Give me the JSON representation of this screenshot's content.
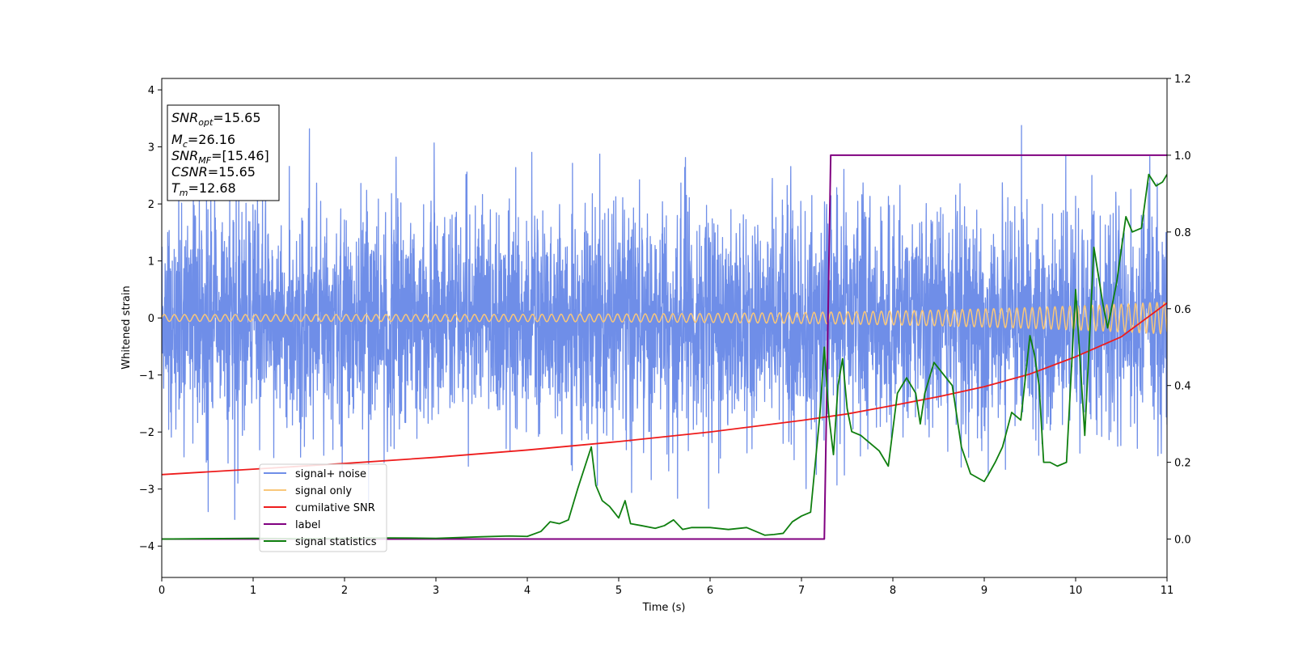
{
  "chart_data": {
    "type": "line",
    "xlabel": "Time (s)",
    "ylabel": "Whitened strain",
    "xlim": [
      0,
      11
    ],
    "ylim": [
      -4.55,
      4.2
    ],
    "y2lim": [
      -0.1,
      1.2
    ],
    "x_ticks": [
      "0",
      "1",
      "2",
      "3",
      "4",
      "5",
      "6",
      "7",
      "8",
      "9",
      "10",
      "11"
    ],
    "y_ticks": [
      "4",
      "3",
      "2",
      "1",
      "0",
      "−1",
      "−2",
      "−3",
      "−4"
    ],
    "y2_ticks": [
      "1.2",
      "1.0",
      "0.8",
      "0.6",
      "0.4",
      "0.2",
      "0.0"
    ],
    "grid": false,
    "legend_position": "lower-left",
    "info_box": {
      "snr_opt": {
        "base": "SNR",
        "sub": "opt",
        "value": "=15.65"
      },
      "mc": {
        "base": "M",
        "sub": "c",
        "value": "=26.16"
      },
      "snr_mf": {
        "base": "SNR",
        "sub": "MF",
        "value": "=[15.46]"
      },
      "csnr": {
        "base": "CSNR",
        "sub": "",
        "value": "=15.65"
      },
      "tm": {
        "base": "T",
        "sub": "m",
        "value": "=12.68"
      }
    },
    "series": [
      {
        "name": "signal+ noise",
        "color": "#6f8ee8",
        "axis": "left",
        "description": "whitened noise, std approx 1, range approx -4.2 to 3.8"
      },
      {
        "name": "signal only",
        "color": "#f9c77a",
        "axis": "left",
        "chirp_amplitude_start": 0.06,
        "chirp_amplitude_end": 0.28
      },
      {
        "name": "cumilative SNR",
        "color": "#ee1c1c",
        "axis": "right",
        "x": [
          0,
          1,
          2,
          3,
          4,
          5,
          6,
          7,
          7.5,
          8,
          8.5,
          9,
          9.5,
          10,
          10.5,
          11
        ],
        "y": [
          0.168,
          0.182,
          0.197,
          0.213,
          0.232,
          0.254,
          0.279,
          0.309,
          0.326,
          0.348,
          0.371,
          0.397,
          0.43,
          0.475,
          0.527,
          0.615
        ]
      },
      {
        "name": "label",
        "color": "#800080",
        "axis": "right",
        "x": [
          0,
          7.25,
          7.32,
          11
        ],
        "y": [
          0.0,
          0.0,
          1.0,
          1.0
        ]
      },
      {
        "name": "signal statistics",
        "color": "#0f7f0f",
        "axis": "right",
        "x": [
          0,
          0.5,
          1,
          1.5,
          2,
          2.5,
          3,
          3.5,
          3.8,
          4.0,
          4.15,
          4.25,
          4.35,
          4.45,
          4.55,
          4.7,
          4.75,
          4.82,
          4.9,
          5.0,
          5.07,
          5.13,
          5.25,
          5.4,
          5.5,
          5.6,
          5.7,
          5.8,
          6.0,
          6.2,
          6.4,
          6.6,
          6.7,
          6.8,
          6.9,
          7.0,
          7.1,
          7.2,
          7.25,
          7.3,
          7.35,
          7.4,
          7.45,
          7.5,
          7.55,
          7.65,
          7.75,
          7.85,
          7.95,
          8.05,
          8.15,
          8.25,
          8.3,
          8.35,
          8.45,
          8.55,
          8.65,
          8.75,
          8.85,
          9.0,
          9.05,
          9.12,
          9.2,
          9.3,
          9.4,
          9.5,
          9.55,
          9.6,
          9.65,
          9.72,
          9.8,
          9.9,
          10.0,
          10.1,
          10.2,
          10.3,
          10.35,
          10.45,
          10.55,
          10.62,
          10.72,
          10.8,
          10.88,
          10.95,
          11.0
        ],
        "y": [
          0.0,
          0.001,
          0.002,
          0.001,
          0.002,
          0.003,
          0.002,
          0.006,
          0.008,
          0.007,
          0.02,
          0.045,
          0.04,
          0.05,
          0.13,
          0.24,
          0.14,
          0.1,
          0.085,
          0.055,
          0.1,
          0.04,
          0.035,
          0.028,
          0.035,
          0.05,
          0.025,
          0.03,
          0.03,
          0.025,
          0.03,
          0.01,
          0.012,
          0.015,
          0.045,
          0.06,
          0.07,
          0.32,
          0.5,
          0.32,
          0.22,
          0.4,
          0.47,
          0.34,
          0.28,
          0.27,
          0.25,
          0.23,
          0.19,
          0.38,
          0.42,
          0.38,
          0.3,
          0.38,
          0.46,
          0.43,
          0.4,
          0.24,
          0.17,
          0.15,
          0.17,
          0.2,
          0.24,
          0.33,
          0.31,
          0.53,
          0.48,
          0.4,
          0.2,
          0.2,
          0.19,
          0.2,
          0.65,
          0.27,
          0.76,
          0.61,
          0.55,
          0.67,
          0.84,
          0.8,
          0.81,
          0.95,
          0.92,
          0.93,
          0.95
        ]
      }
    ]
  }
}
